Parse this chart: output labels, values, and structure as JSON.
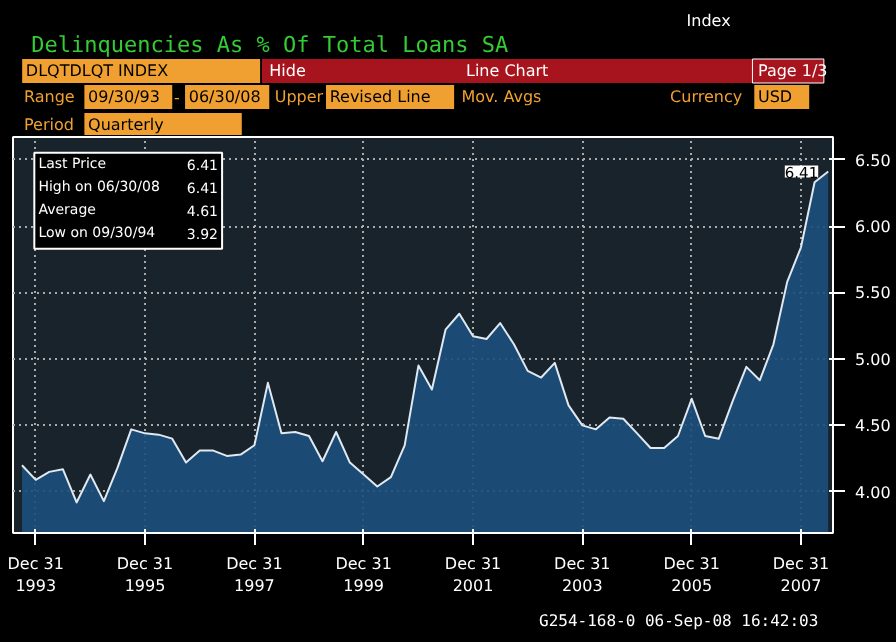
{
  "chart_data": {
    "type": "area",
    "title": "Delinquencies As % Of Total Loans SA",
    "x": [
      "1993-09-30",
      "1993-12-31",
      "1994-03-31",
      "1994-06-30",
      "1994-09-30",
      "1994-12-31",
      "1995-03-31",
      "1995-06-30",
      "1995-09-30",
      "1995-12-31",
      "1996-03-31",
      "1996-06-30",
      "1996-09-30",
      "1996-12-31",
      "1997-03-31",
      "1997-06-30",
      "1997-09-30",
      "1997-12-31",
      "1998-03-31",
      "1998-06-30",
      "1998-09-30",
      "1998-12-31",
      "1999-03-31",
      "1999-06-30",
      "1999-09-30",
      "1999-12-31",
      "2000-03-31",
      "2000-06-30",
      "2000-09-30",
      "2000-12-31",
      "2001-03-31",
      "2001-06-30",
      "2001-09-30",
      "2001-12-31",
      "2002-03-31",
      "2002-06-30",
      "2002-09-30",
      "2002-12-31",
      "2003-03-31",
      "2003-06-30",
      "2003-09-30",
      "2003-12-31",
      "2004-03-31",
      "2004-06-30",
      "2004-09-30",
      "2004-12-31",
      "2005-03-31",
      "2005-06-30",
      "2005-09-30",
      "2005-12-31",
      "2006-03-31",
      "2006-06-30",
      "2006-09-30",
      "2006-12-31",
      "2007-03-31",
      "2007-06-30",
      "2007-09-30",
      "2007-12-31",
      "2008-03-31",
      "2008-06-30"
    ],
    "series": [
      {
        "color": "#1c4f7c",
        "values": [
          4.2,
          4.09,
          4.15,
          4.17,
          3.92,
          4.13,
          3.93,
          4.18,
          4.47,
          4.44,
          4.43,
          4.4,
          4.22,
          4.31,
          4.31,
          4.27,
          4.28,
          4.35,
          4.82,
          4.44,
          4.45,
          4.42,
          4.23,
          4.45,
          4.22,
          4.13,
          4.04,
          4.11,
          4.35,
          4.95,
          4.77,
          5.22,
          5.34,
          5.17,
          5.15,
          5.27,
          5.11,
          4.91,
          4.86,
          4.97,
          4.65,
          4.5,
          4.47,
          4.56,
          4.55,
          4.44,
          4.33,
          4.33,
          4.42,
          4.7,
          4.42,
          4.4,
          4.68,
          4.94,
          4.84,
          5.11,
          5.58,
          5.84,
          6.33,
          6.41
        ]
      }
    ],
    "xlim": [
      "1993-08-01",
      "2008-08-01"
    ],
    "xticks": [
      {
        "value": "1993-12-31",
        "label": "Dec 31\n1993"
      },
      {
        "value": "1995-12-31",
        "label": "Dec 31\n1995"
      },
      {
        "value": "1997-12-31",
        "label": "Dec 31\n1997"
      },
      {
        "value": "1999-12-31",
        "label": "Dec 31\n1999"
      },
      {
        "value": "2001-12-31",
        "label": "Dec 31\n2001"
      },
      {
        "value": "2003-12-31",
        "label": "Dec 31\n2003"
      },
      {
        "value": "2005-12-31",
        "label": "Dec 31\n2005"
      },
      {
        "value": "2007-12-31",
        "label": "Dec 31\n2007"
      }
    ],
    "ylim": [
      3.69,
      6.67
    ],
    "yticks": [
      {
        "value": 4,
        "label": "4.00"
      },
      {
        "value": 4.5,
        "label": "4.50"
      },
      {
        "value": 5,
        "label": "5.00"
      },
      {
        "value": 5.5,
        "label": "5.50"
      },
      {
        "value": 6,
        "label": "6.00"
      },
      {
        "value": 6.5,
        "label": "6.50"
      }
    ],
    "grid": true,
    "annotations": [
      "Index",
      "DLQTDLQT INDEX",
      "Hide",
      "Line Chart",
      "Page 1/3",
      "Range",
      "09/30/93",
      "-",
      "06/30/08",
      "Upper",
      "Revised Line",
      "Mov. Avgs",
      "Currency",
      "USD",
      "Period",
      "Quarterly",
      "Last Price",
      "6.41",
      "High on  06/30/08",
      "6.41",
      "Average",
      "4.61",
      "Low on  09/30/94",
      "3.92",
      "G254-168-0 06-Sep-08 16:42:03",
      {
        "text": "6.41",
        "x": "2008-06-30",
        "y": 6.41
      }
    ]
  }
}
